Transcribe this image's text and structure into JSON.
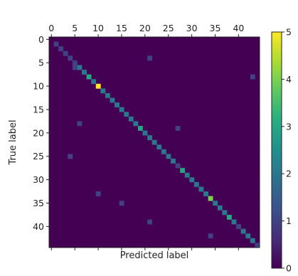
{
  "chart_data": {
    "type": "heatmap",
    "title": "",
    "xlabel": "Predicted label",
    "ylabel": "True label",
    "n_classes": 45,
    "xticks": [
      0,
      5,
      10,
      15,
      20,
      25,
      30,
      35,
      40
    ],
    "yticks": [
      0,
      5,
      10,
      15,
      20,
      25,
      30,
      35,
      40
    ],
    "colormap": "viridis",
    "clim": [
      0,
      5
    ],
    "colorbar_ticks": [
      0,
      1,
      2,
      3,
      4,
      5
    ],
    "diagonal": [
      0,
      1,
      1,
      1,
      1,
      1,
      2,
      2,
      3,
      2,
      5,
      2,
      2,
      2,
      2,
      2,
      2,
      2,
      2,
      3,
      2,
      2,
      2,
      2,
      2,
      2,
      2,
      1,
      3,
      2,
      2,
      2,
      2,
      2,
      4,
      2,
      2,
      2,
      3,
      2,
      1,
      2,
      2,
      2,
      1
    ],
    "off_diagonal": [
      {
        "row": 4,
        "col": 21,
        "value": 1
      },
      {
        "row": 6,
        "col": 5,
        "value": 1
      },
      {
        "row": 8,
        "col": 43,
        "value": 1
      },
      {
        "row": 18,
        "col": 6,
        "value": 1
      },
      {
        "row": 19,
        "col": 27,
        "value": 1
      },
      {
        "row": 25,
        "col": 4,
        "value": 1
      },
      {
        "row": 33,
        "col": 10,
        "value": 1
      },
      {
        "row": 35,
        "col": 15,
        "value": 1
      },
      {
        "row": 39,
        "col": 21,
        "value": 1
      },
      {
        "row": 42,
        "col": 34,
        "value": 1
      }
    ]
  }
}
